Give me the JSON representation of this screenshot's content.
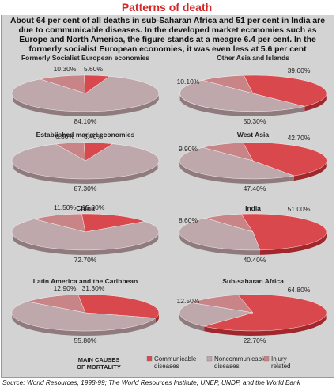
{
  "header": {
    "title": "Patterns of death",
    "intro": "About 64 per cent of all deaths in sub-Saharan Africa and 51 per cent in India are due to communicable diseases. In the developed market economies such as Europe and North America, the figure stands at a meagre 6.4 per cent. In the formerly socialist European economies, it was even less at 5.6 per cent"
  },
  "source": "Source: World Resources, 1998-99; The World Resources Institute, UNEP, UNDP, and the World Bank",
  "legend": {
    "title": "MAIN CAUSES OF MORTALITY",
    "items": [
      {
        "label": "Communicable diseases",
        "color": "#d9484c"
      },
      {
        "label": "Noncommunicable diseases",
        "color": "#bfa8ab"
      },
      {
        "label": "Injury related",
        "color": "#c88486"
      }
    ]
  },
  "colors": {
    "communicable": "#d9484c",
    "noncommunicable": "#bfa8ab",
    "injury": "#c88486"
  },
  "chart_data": [
    {
      "type": "pie",
      "title": "Formerly Socialist European economies",
      "labels": [
        "Communicable diseases",
        "Noncommunicable diseases",
        "Injury related"
      ],
      "values": [
        5.6,
        84.1,
        10.3
      ],
      "value_labels": [
        "5.60%",
        "84.10%",
        "10.30%"
      ]
    },
    {
      "type": "pie",
      "title": "Other Asia and Islands",
      "labels": [
        "Communicable diseases",
        "Noncommunicable diseases",
        "Injury related"
      ],
      "values": [
        39.6,
        50.3,
        10.1
      ],
      "value_labels": [
        "39.60%",
        "50.30%",
        "10.10%"
      ]
    },
    {
      "type": "pie",
      "title": "Established market economies",
      "labels": [
        "Communicable diseases",
        "Noncommunicable diseases",
        "Injury related"
      ],
      "values": [
        6.4,
        87.3,
        6.3
      ],
      "value_labels": [
        "6.40%",
        "87.30%",
        "6.30%"
      ]
    },
    {
      "type": "pie",
      "title": "West Asia",
      "labels": [
        "Communicable diseases",
        "Noncommunicable diseases",
        "Injury related"
      ],
      "values": [
        42.7,
        47.4,
        9.9
      ],
      "value_labels": [
        "42.70%",
        "47.40%",
        "9.90%"
      ]
    },
    {
      "type": "pie",
      "title": "China",
      "labels": [
        "Communicable diseases",
        "Noncommunicable diseases",
        "Injury related"
      ],
      "values": [
        15.8,
        72.7,
        11.5
      ],
      "value_labels": [
        "15.80%",
        "72.70%",
        "11.50%"
      ]
    },
    {
      "type": "pie",
      "title": "India",
      "labels": [
        "Communicable diseases",
        "Noncommunicable diseases",
        "Injury related"
      ],
      "values": [
        51.0,
        40.4,
        8.6
      ],
      "value_labels": [
        "51.00%",
        "40.40%",
        "8.60%"
      ]
    },
    {
      "type": "pie",
      "title": "Latin America and the Caribbean",
      "labels": [
        "Communicable diseases",
        "Noncommunicable diseases",
        "Injury related"
      ],
      "values": [
        31.3,
        55.8,
        12.9
      ],
      "value_labels": [
        "31.30%",
        "55.80%",
        "12.90%"
      ]
    },
    {
      "type": "pie",
      "title": "Sub-saharan Africa",
      "labels": [
        "Communicable diseases",
        "Noncommunicable diseases",
        "Injury related"
      ],
      "values": [
        64.8,
        22.7,
        12.5
      ],
      "value_labels": [
        "64.80%",
        "22.70%",
        "12.50%"
      ]
    }
  ]
}
